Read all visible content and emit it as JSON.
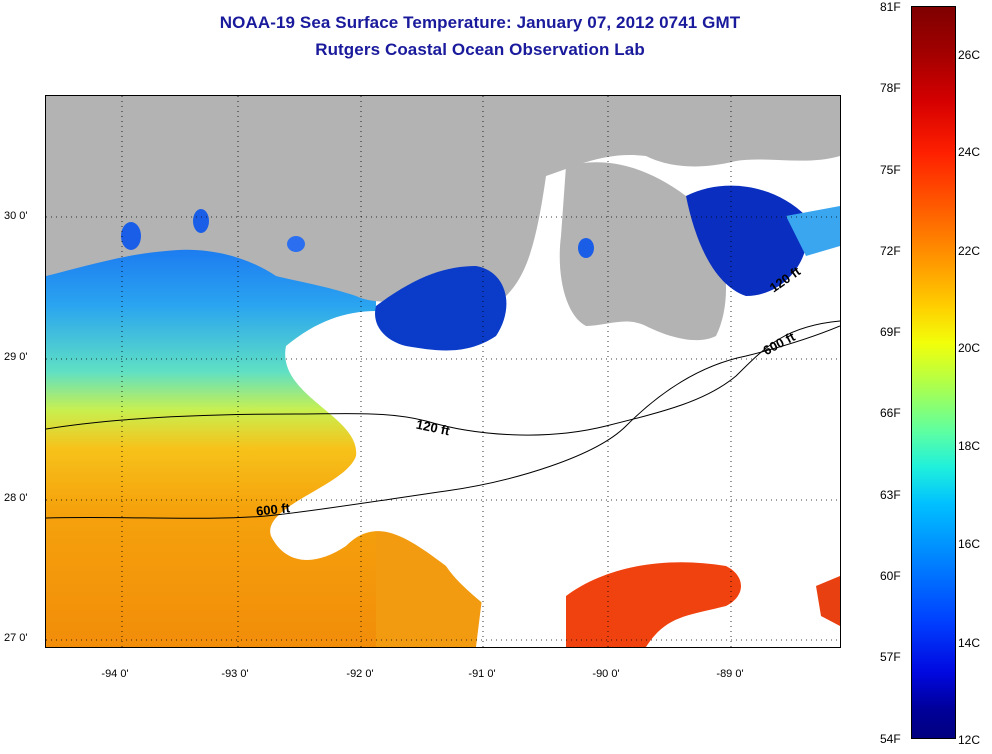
{
  "title": {
    "line1": "NOAA-19 Sea Surface Temperature:  January 07, 2012 0741 GMT",
    "line2": "Rutgers Coastal Ocean Observation Lab"
  },
  "map": {
    "lat_labels": [
      "30 0'",
      "29 0'",
      "28 0'",
      "27 0'"
    ],
    "lon_labels": [
      "-94 0'",
      "-93 0'",
      "-92 0'",
      "-91 0'",
      "-90 0'",
      "-89 0'"
    ],
    "contour_labels": [
      "120 ft",
      "600 ft",
      "120 ft",
      "600 ft"
    ],
    "colors": {
      "land": "#b3b3b3",
      "cloud_no_data": "#ffffff",
      "contour": "#000000",
      "title": "#1a1a9c"
    }
  },
  "colorbar": {
    "fahrenheit": [
      "81F",
      "78F",
      "75F",
      "72F",
      "69F",
      "66F",
      "63F",
      "60F",
      "57F",
      "54F"
    ],
    "celsius": [
      "26C",
      "24C",
      "22C",
      "20C",
      "18C",
      "16C",
      "14C",
      "12C"
    ],
    "range_f": [
      54,
      81
    ],
    "range_c": [
      12,
      27
    ]
  }
}
